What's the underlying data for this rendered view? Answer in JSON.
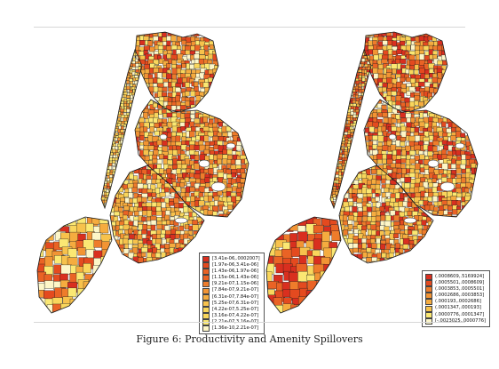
{
  "caption": "Figure 6: Productivity and Amenity Spillovers",
  "colors": {
    "scale": [
      "#d92f1f",
      "#e44a1f",
      "#ea6325",
      "#ee7c2b",
      "#f29434",
      "#f5ac3f",
      "#f7c24c",
      "#f9d65c",
      "#fbe873",
      "#fdf6c8"
    ],
    "border": "#1a1a1a",
    "water": "#ffffff"
  },
  "maps": [
    {
      "id": "productivity",
      "legend": [
        "[3.41e-06,.0002007]",
        "[1.97e-06,3.41e-06]",
        "[1.43e-06,1.97e-06]",
        "[1.15e-06,1.43e-06]",
        "[9.21e-07,1.15e-06]",
        "[7.84e-07,9.21e-07]",
        "[6.31e-07,7.84e-07]",
        "[5.25e-07,6.31e-07]",
        "[4.22e-07,5.25e-07]",
        "[3.16e-07,4.22e-07]",
        "[2.21e-07,3.16e-07]",
        "[1.36e-10,2.21e-07]"
      ]
    },
    {
      "id": "amenity",
      "legend": [
        "(.0008609,.5169924]",
        "(.0005501,.0008609]",
        "(.0003853,.0005501]",
        "(.0002686,.0003853]",
        "(.000193,.0002686]",
        "(.0001347,.000193]",
        "(.0000776,.0001347]",
        "[-.0023025,.0000776]"
      ]
    }
  ]
}
